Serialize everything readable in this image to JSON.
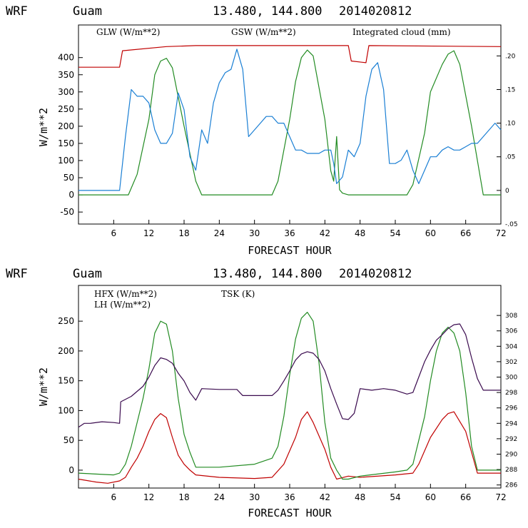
{
  "colors": {
    "red": "#c00000",
    "green": "#228b22",
    "blue": "#1a7fd4",
    "purple": "#3a0a4e",
    "black": "#000000"
  },
  "chart_data": [
    {
      "type": "line",
      "header": {
        "model": "WRF",
        "location": "Guam",
        "coords": "13.480, 144.800",
        "run": "2014020812"
      },
      "xlabel": "FORECAST HOUR",
      "ylabel": "W/m**2",
      "xlim": [
        0,
        72
      ],
      "ylim": [
        -85,
        495
      ],
      "xticks": [
        6,
        12,
        18,
        24,
        30,
        36,
        42,
        48,
        54,
        60,
        66,
        72
      ],
      "yticks": [
        -50,
        0,
        50,
        100,
        150,
        200,
        250,
        300,
        350,
        400
      ],
      "y2lim": [
        -0.05,
        0.246
      ],
      "y2ticks": [
        -0.05,
        0,
        0.05,
        0.1,
        0.15,
        0.2
      ],
      "y2ticklabels": [
        "-.05",
        "0",
        ".05",
        ".10",
        ".15",
        ".20"
      ],
      "legend": {
        "glw": "GLW (W/m**2)",
        "gsw": "GSW (W/m**2)",
        "cloud": "Integrated cloud (mm)"
      },
      "series": [
        {
          "name": "GLW (W/m**2)",
          "axis": "left",
          "color": "red",
          "x": [
            0,
            7,
            7.5,
            15,
            20,
            46,
            46.5,
            49,
            49.5,
            72
          ],
          "y": [
            372,
            372,
            420,
            432,
            435,
            435,
            390,
            385,
            435,
            432
          ]
        },
        {
          "name": "GSW (W/m**2)",
          "axis": "left",
          "color": "green",
          "x": [
            0,
            8.5,
            10,
            12,
            13,
            14,
            15,
            16,
            18,
            20,
            21,
            33,
            34,
            36,
            37,
            38,
            39,
            40,
            42,
            43,
            43.5,
            44,
            44.5,
            45,
            46,
            56,
            57,
            59,
            60,
            62,
            63,
            64,
            65,
            67,
            69,
            72
          ],
          "y": [
            0,
            0,
            60,
            220,
            350,
            390,
            398,
            370,
            200,
            40,
            0,
            0,
            40,
            220,
            330,
            400,
            422,
            405,
            220,
            70,
            40,
            170,
            15,
            5,
            0,
            0,
            30,
            180,
            300,
            380,
            410,
            420,
            380,
            200,
            0,
            0
          ]
        },
        {
          "name": "Integrated cloud (mm)",
          "axis": "right",
          "color": "blue",
          "x": [
            0,
            7,
            8,
            9,
            10,
            11,
            12,
            13,
            14,
            15,
            16,
            17,
            18,
            19,
            20,
            21,
            22,
            23,
            24,
            25,
            26,
            27,
            28,
            29,
            30,
            31,
            32,
            33,
            34,
            35,
            36,
            37,
            38,
            39,
            40,
            41,
            42,
            43,
            43.5,
            44,
            45,
            46,
            47,
            48,
            49,
            50,
            51,
            52,
            53,
            54,
            55,
            56,
            57,
            58,
            59,
            60,
            61,
            62,
            63,
            64,
            65,
            66,
            67,
            68,
            69,
            70,
            71,
            72
          ],
          "y": [
            0,
            0,
            0.08,
            0.15,
            0.14,
            0.14,
            0.13,
            0.09,
            0.07,
            0.07,
            0.085,
            0.145,
            0.12,
            0.05,
            0.03,
            0.09,
            0.07,
            0.13,
            0.16,
            0.175,
            0.18,
            0.21,
            0.18,
            0.08,
            0.09,
            0.1,
            0.11,
            0.11,
            0.1,
            0.1,
            0.08,
            0.06,
            0.06,
            0.055,
            0.055,
            0.055,
            0.06,
            0.06,
            0.04,
            0.01,
            0.02,
            0.06,
            0.05,
            0.07,
            0.14,
            0.18,
            0.19,
            0.15,
            0.04,
            0.04,
            0.045,
            0.06,
            0.03,
            0.01,
            0.03,
            0.05,
            0.05,
            0.06,
            0.065,
            0.06,
            0.06,
            0.065,
            0.07,
            0.07,
            0.08,
            0.09,
            0.1,
            0.09
          ]
        }
      ]
    },
    {
      "type": "line",
      "header": {
        "model": "WRF",
        "location": "Guam",
        "coords": "13.480, 144.800",
        "run": "2014020812"
      },
      "xlabel": "FORECAST HOUR",
      "ylabel": "W/m**2",
      "xlim": [
        0,
        72
      ],
      "ylim": [
        -30,
        310
      ],
      "xticks": [
        6,
        12,
        18,
        24,
        30,
        36,
        42,
        48,
        54,
        60,
        66,
        72
      ],
      "yticks": [
        0,
        50,
        100,
        150,
        200,
        250
      ],
      "y2lim": [
        285.6,
        311.9
      ],
      "y2ticks": [
        286,
        288,
        290,
        292,
        294,
        296,
        298,
        300,
        302,
        304,
        306,
        308
      ],
      "y2ticklabels": [
        "286",
        "288",
        "290",
        "292",
        "294",
        "296",
        "298",
        "300",
        "302",
        "304",
        "306",
        "308"
      ],
      "legend": {
        "hfx": "HFX (W/m**2)",
        "lh": "LH  (W/m**2)",
        "tsk": "TSK (K)"
      },
      "series": [
        {
          "name": "HFX (W/m**2)",
          "axis": "left",
          "color": "red",
          "x": [
            0,
            3,
            5,
            7,
            8,
            9,
            10,
            11,
            12,
            13,
            14,
            15,
            16,
            17,
            18,
            19,
            20,
            24,
            30,
            33,
            35,
            37,
            38,
            39,
            40,
            42,
            43,
            44,
            46,
            48,
            54,
            57,
            58,
            60,
            62,
            63,
            64,
            66,
            68,
            72
          ],
          "y": [
            -15,
            -20,
            -22,
            -18,
            -12,
            5,
            20,
            40,
            65,
            85,
            95,
            88,
            55,
            25,
            10,
            0,
            -8,
            -12,
            -14,
            -12,
            10,
            55,
            85,
            98,
            80,
            35,
            5,
            -15,
            -10,
            -12,
            -8,
            -5,
            10,
            55,
            85,
            95,
            98,
            65,
            -5,
            -5
          ]
        },
        {
          "name": "LH  (W/m**2)",
          "axis": "left",
          "color": "green",
          "x": [
            0,
            6,
            7,
            8,
            9,
            10,
            11,
            12,
            13,
            14,
            15,
            16,
            17,
            18,
            19,
            20,
            24,
            30,
            33,
            34,
            35,
            36,
            37,
            38,
            39,
            40,
            41,
            42,
            43,
            44,
            45,
            46,
            48,
            54,
            56,
            57,
            58,
            59,
            60,
            61,
            62,
            63,
            64,
            65,
            66,
            67,
            68,
            72
          ],
          "y": [
            -5,
            -8,
            -5,
            10,
            40,
            80,
            120,
            170,
            230,
            250,
            245,
            200,
            120,
            60,
            30,
            5,
            5,
            10,
            20,
            40,
            90,
            160,
            220,
            255,
            265,
            250,
            180,
            80,
            20,
            0,
            -15,
            -15,
            -10,
            -3,
            0,
            10,
            50,
            90,
            150,
            200,
            230,
            240,
            230,
            200,
            130,
            40,
            0,
            0
          ]
        },
        {
          "name": "TSK (K)",
          "axis": "right",
          "color": "purple",
          "x": [
            0,
            1,
            2,
            4,
            6,
            7,
            7.2,
            9,
            11,
            12,
            13,
            14,
            15,
            16,
            17,
            18,
            19,
            20,
            21,
            24,
            27,
            28,
            30,
            33,
            34,
            35,
            36,
            37,
            38,
            39,
            40,
            41,
            42,
            43,
            44,
            45,
            46,
            47,
            48,
            50,
            52,
            54,
            56,
            57,
            58,
            59,
            60,
            61,
            62,
            63,
            64,
            65,
            66,
            67,
            68,
            69,
            72
          ],
          "y": [
            293.5,
            294,
            294,
            294.2,
            294.1,
            294,
            296.8,
            297.5,
            298.8,
            300,
            301.5,
            302.5,
            302.3,
            301.8,
            300.5,
            299.5,
            298,
            297,
            298.5,
            298.4,
            298.4,
            297.6,
            297.6,
            297.6,
            298.3,
            299.5,
            300.8,
            302.2,
            303,
            303.3,
            303.1,
            302.3,
            300.8,
            298.5,
            296.5,
            294.6,
            294.5,
            295.3,
            298.5,
            298.3,
            298.5,
            298.3,
            297.8,
            298,
            300,
            302,
            303.5,
            304.8,
            305.5,
            306.3,
            306.8,
            306.9,
            305.5,
            302.5,
            299.8,
            298.3,
            298.3
          ]
        }
      ]
    }
  ]
}
